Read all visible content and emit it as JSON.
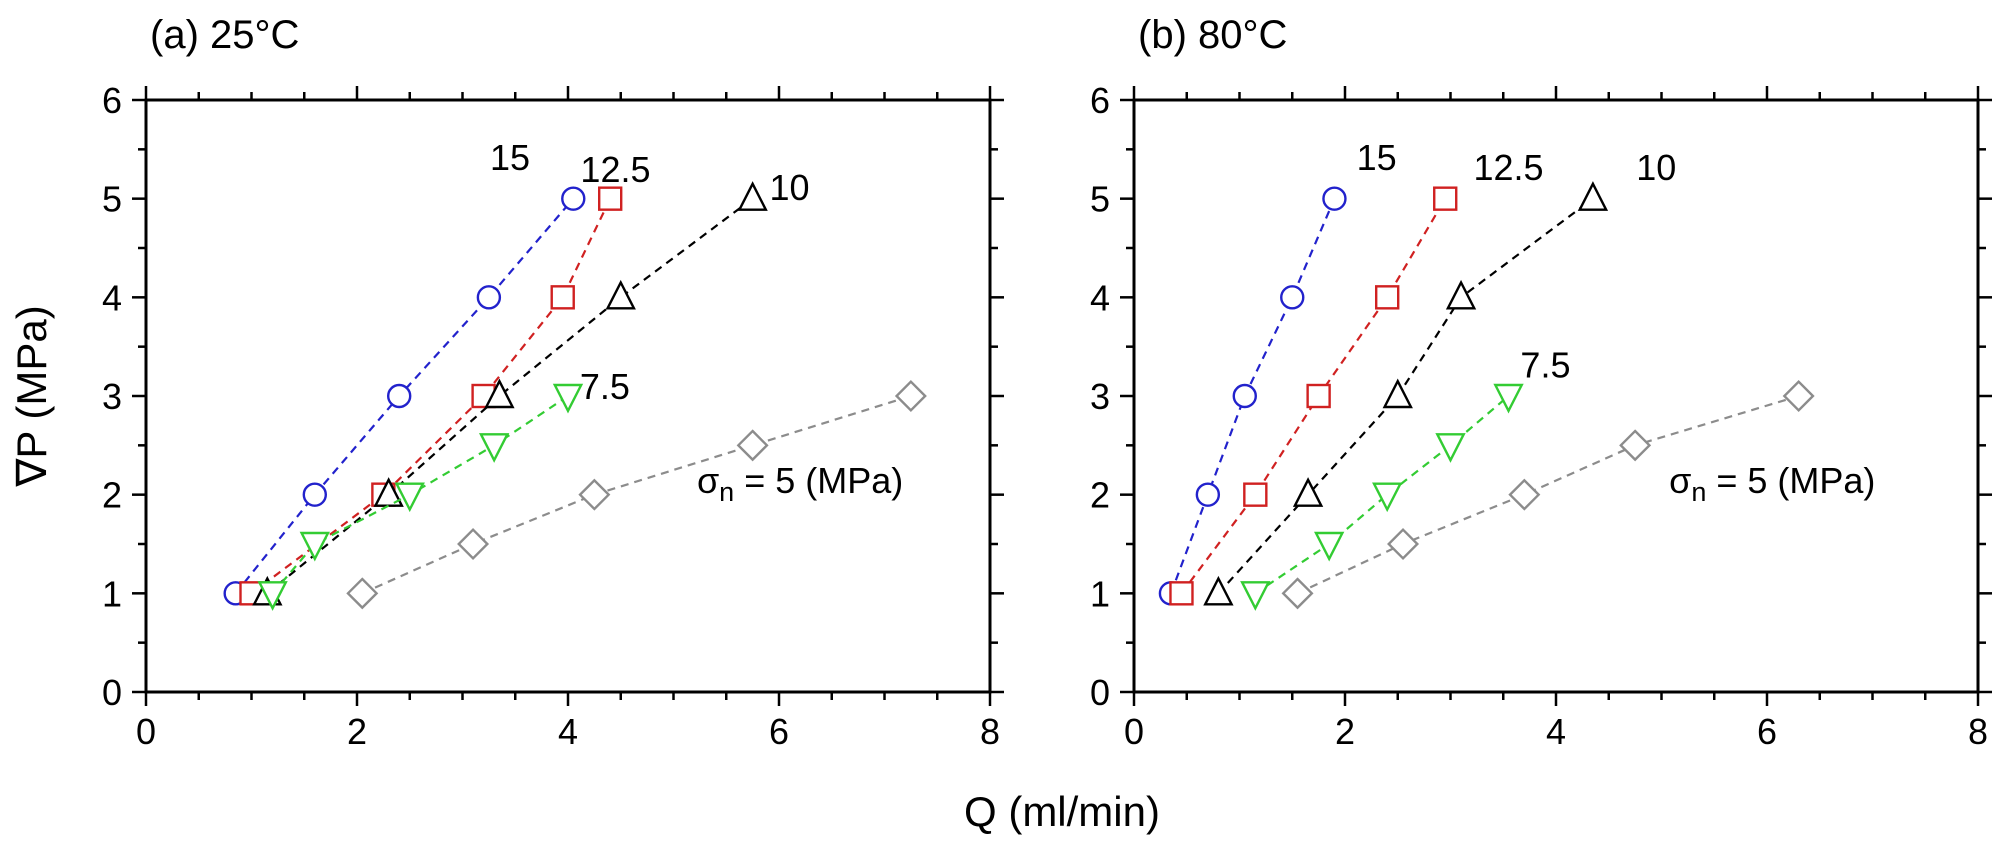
{
  "figure": {
    "background": "#ffffff",
    "shared_xlabel": "Q (ml/min)",
    "shared_ylabel": "∇P (MPa)"
  },
  "chart_data": [
    {
      "type": "scatter",
      "panel": "a",
      "title": "(a) 25°C",
      "xlabel": "Q (ml/min)",
      "ylabel": "∇P (MPa)",
      "xlim": [
        0,
        8
      ],
      "ylim": [
        0,
        6
      ],
      "x_major_ticks": [
        0,
        2,
        4,
        6,
        8
      ],
      "x_minor_step": 0.5,
      "y_major_ticks": [
        0,
        1,
        2,
        3,
        4,
        5,
        6
      ],
      "y_minor_step": 0.5,
      "grid": false,
      "legend": "none",
      "tick_style": "outward, all four sides",
      "series": [
        {
          "name": "sigma_n = 15 MPa",
          "label": "15",
          "marker": "circle",
          "color": "#2222cc",
          "linestyle": "dashed",
          "points": [
            [
              0.85,
              1
            ],
            [
              1.6,
              2
            ],
            [
              2.4,
              3
            ],
            [
              3.25,
              4
            ],
            [
              4.05,
              5
            ]
          ]
        },
        {
          "name": "sigma_n = 12.5 MPa",
          "label": "12.5",
          "marker": "square",
          "color": "#d02121",
          "linestyle": "dashed",
          "points": [
            [
              1.0,
              1
            ],
            [
              2.25,
              2
            ],
            [
              3.2,
              3
            ],
            [
              3.95,
              4
            ],
            [
              4.4,
              5
            ]
          ]
        },
        {
          "name": "sigma_n = 10 MPa",
          "label": "10",
          "marker": "triangle-up",
          "color": "#000000",
          "linestyle": "dashed",
          "points": [
            [
              1.15,
              1
            ],
            [
              2.3,
              2
            ],
            [
              3.35,
              3
            ],
            [
              4.5,
              4
            ],
            [
              5.75,
              5
            ]
          ]
        },
        {
          "name": "sigma_n = 7.5 MPa",
          "label": "7.5",
          "marker": "triangle-down",
          "color": "#33cc33",
          "linestyle": "dashed",
          "points": [
            [
              1.2,
              1
            ],
            [
              1.6,
              1.5
            ],
            [
              2.5,
              2
            ],
            [
              3.3,
              2.5
            ],
            [
              4.0,
              3
            ]
          ]
        },
        {
          "name": "sigma_n = 5 MPa",
          "label": "5",
          "marker": "diamond",
          "color": "#8c8c8c",
          "linestyle": "dashed",
          "points": [
            [
              2.05,
              1
            ],
            [
              3.1,
              1.5
            ],
            [
              4.25,
              2
            ],
            [
              5.75,
              2.5
            ],
            [
              7.25,
              3
            ]
          ]
        }
      ],
      "annotations": [
        {
          "text": "15",
          "x": 3.45,
          "y": 5.42
        },
        {
          "text": "12.5",
          "x": 4.45,
          "y": 5.3
        },
        {
          "text": "10",
          "x": 6.1,
          "y": 5.12
        },
        {
          "text": "7.5",
          "x": 4.35,
          "y": 3.1
        },
        {
          "sigma_base": "σ",
          "sigma_sub": "n",
          "text_rest": " = 5 (MPa)",
          "x": 6.2,
          "y": 2.15
        }
      ]
    },
    {
      "type": "scatter",
      "panel": "b",
      "title": "(b) 80°C",
      "xlabel": "Q (ml/min)",
      "ylabel": "",
      "xlim": [
        0,
        8
      ],
      "ylim": [
        0,
        6
      ],
      "x_major_ticks": [
        0,
        2,
        4,
        6,
        8
      ],
      "x_minor_step": 0.5,
      "y_major_ticks": [
        0,
        1,
        2,
        3,
        4,
        5,
        6
      ],
      "y_minor_step": 0.5,
      "grid": false,
      "legend": "none",
      "tick_style": "outward, all four sides",
      "series": [
        {
          "name": "sigma_n = 15 MPa",
          "label": "15",
          "marker": "circle",
          "color": "#2222cc",
          "linestyle": "dashed",
          "points": [
            [
              0.35,
              1
            ],
            [
              0.7,
              2
            ],
            [
              1.05,
              3
            ],
            [
              1.5,
              4
            ],
            [
              1.9,
              5
            ]
          ]
        },
        {
          "name": "sigma_n = 12.5 MPa",
          "label": "12.5",
          "marker": "square",
          "color": "#d02121",
          "linestyle": "dashed",
          "points": [
            [
              0.45,
              1
            ],
            [
              1.15,
              2
            ],
            [
              1.75,
              3
            ],
            [
              2.4,
              4
            ],
            [
              2.95,
              5
            ]
          ]
        },
        {
          "name": "sigma_n = 10 MPa",
          "label": "10",
          "marker": "triangle-up",
          "color": "#000000",
          "linestyle": "dashed",
          "points": [
            [
              0.8,
              1
            ],
            [
              1.65,
              2
            ],
            [
              2.5,
              3
            ],
            [
              3.1,
              4
            ],
            [
              4.35,
              5
            ]
          ]
        },
        {
          "name": "sigma_n = 7.5 MPa",
          "label": "7.5",
          "marker": "triangle-down",
          "color": "#33cc33",
          "linestyle": "dashed",
          "points": [
            [
              1.15,
              1
            ],
            [
              1.85,
              1.5
            ],
            [
              2.4,
              2
            ],
            [
              3.0,
              2.5
            ],
            [
              3.55,
              3
            ]
          ]
        },
        {
          "name": "sigma_n = 5 MPa",
          "label": "5",
          "marker": "diamond",
          "color": "#8c8c8c",
          "linestyle": "dashed",
          "points": [
            [
              1.55,
              1
            ],
            [
              2.55,
              1.5
            ],
            [
              3.7,
              2
            ],
            [
              4.75,
              2.5
            ],
            [
              6.3,
              3
            ]
          ]
        }
      ],
      "annotations": [
        {
          "text": "15",
          "x": 2.3,
          "y": 5.42
        },
        {
          "text": "12.5",
          "x": 3.55,
          "y": 5.32
        },
        {
          "text": "10",
          "x": 4.95,
          "y": 5.32
        },
        {
          "text": "7.5",
          "x": 3.9,
          "y": 3.32
        },
        {
          "sigma_base": "σ",
          "sigma_sub": "n",
          "text_rest": " = 5 (MPa)",
          "x": 6.05,
          "y": 2.15
        }
      ]
    }
  ]
}
